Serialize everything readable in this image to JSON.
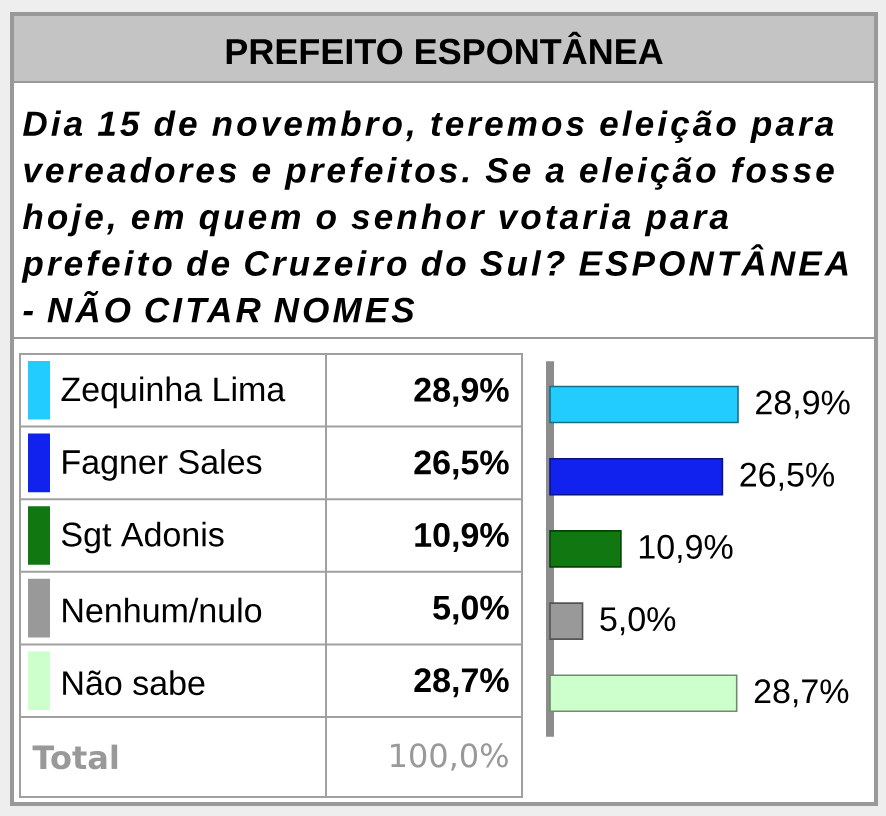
{
  "chart_data": {
    "type": "bar",
    "orientation": "horizontal",
    "title": "PREFEITO ESPONTÂNEA",
    "subtitle": "Dia 15 de novembro, teremos eleição para vereadores e prefeitos. Se a eleição fosse hoje, em quem o senhor votaria para prefeito de Cruzeiro do Sul? ESPONTÂNEA - NÃO CITAR NOMES",
    "categories": [
      "Zequinha Lima",
      "Fagner Sales",
      "Sgt Adonis",
      "Nenhum/nulo",
      "Não sabe"
    ],
    "values": [
      28.9,
      26.5,
      10.9,
      5.0,
      28.7
    ],
    "colors": [
      "#22ccff",
      "#1122ee",
      "#117711",
      "#999999",
      "#ccffcc"
    ],
    "value_labels": [
      "28,9%",
      "26,5%",
      "10,9%",
      "5,0%",
      "28,7%"
    ],
    "annotations": [
      "Total",
      "100,0%"
    ]
  }
}
